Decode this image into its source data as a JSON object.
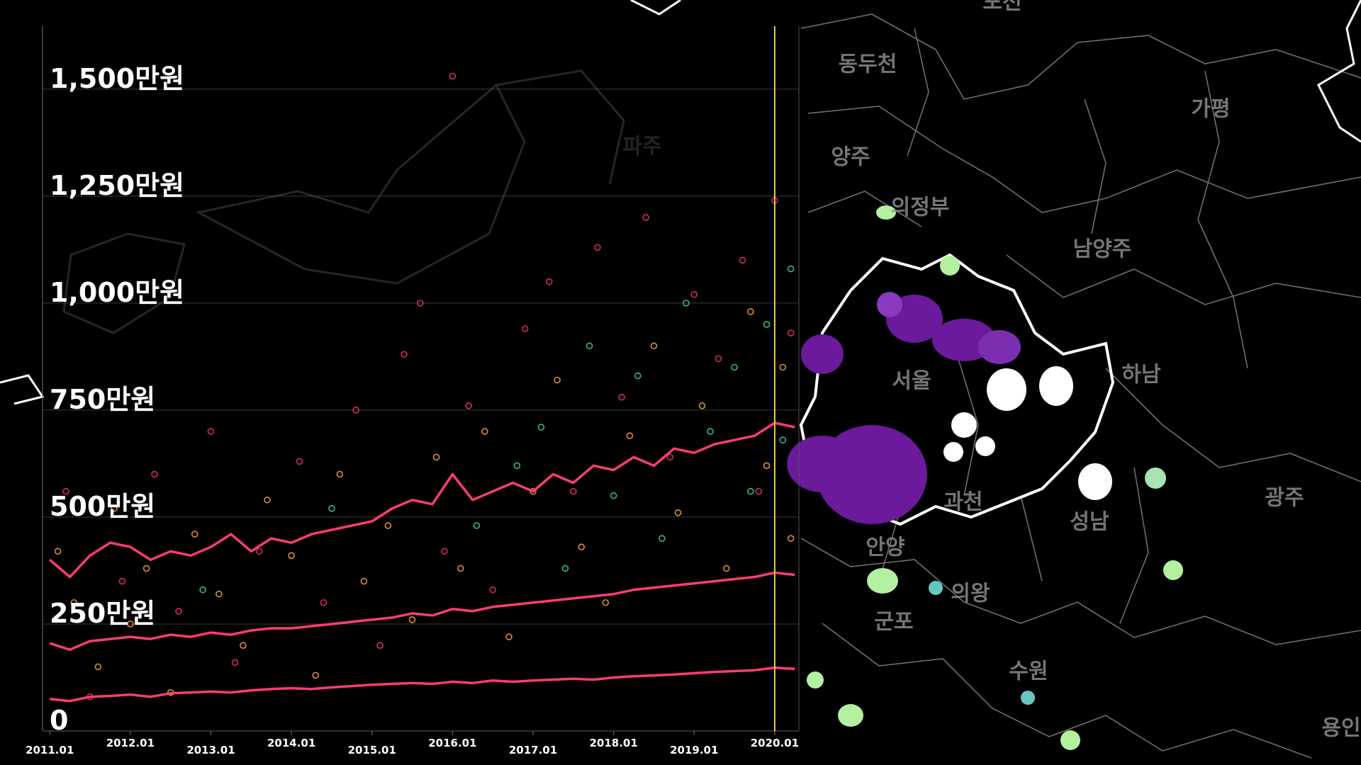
{
  "chart_data": {
    "type": "scatter-line",
    "x": [
      2011.0,
      2011.25,
      2011.5,
      2011.75,
      2012.0,
      2012.25,
      2012.5,
      2012.75,
      2013.0,
      2013.25,
      2013.5,
      2013.75,
      2014.0,
      2014.25,
      2014.5,
      2014.75,
      2015.0,
      2015.25,
      2015.5,
      2015.75,
      2016.0,
      2016.25,
      2016.5,
      2016.75,
      2017.0,
      2017.25,
      2017.5,
      2017.75,
      2018.0,
      2018.25,
      2018.5,
      2018.75,
      2019.0,
      2019.25,
      2019.5,
      2019.75,
      2020.0,
      2020.25
    ],
    "series": [
      {
        "color": "#ff3d6e",
        "values": [
          400,
          360,
          410,
          440,
          430,
          400,
          420,
          410,
          430,
          460,
          420,
          450,
          440,
          460,
          470,
          480,
          490,
          520,
          540,
          530,
          600,
          540,
          560,
          580,
          560,
          600,
          580,
          620,
          610,
          640,
          620,
          660,
          650,
          670,
          680,
          690,
          720,
          710
        ]
      },
      {
        "color": "#ff3d6e",
        "values": [
          205,
          190,
          210,
          215,
          220,
          215,
          225,
          220,
          230,
          225,
          235,
          240,
          240,
          245,
          250,
          255,
          260,
          265,
          275,
          270,
          285,
          280,
          290,
          295,
          300,
          305,
          310,
          315,
          320,
          330,
          335,
          340,
          345,
          350,
          355,
          360,
          370,
          365
        ]
      },
      {
        "color": "#ff3d6e",
        "values": [
          75,
          70,
          80,
          82,
          85,
          80,
          88,
          90,
          92,
          90,
          95,
          98,
          100,
          98,
          102,
          105,
          108,
          110,
          112,
          110,
          115,
          112,
          118,
          115,
          118,
          120,
          122,
          120,
          125,
          128,
          130,
          132,
          135,
          138,
          140,
          142,
          148,
          145
        ]
      }
    ],
    "scatter": [
      {
        "color": "#f2a03a",
        "x": [
          2011.1,
          2011.3,
          2011.6,
          2011.8,
          2012.0,
          2012.2,
          2012.5,
          2012.8,
          2013.1,
          2013.4,
          2013.7,
          2014.0,
          2014.3,
          2014.6,
          2014.9,
          2015.2,
          2015.5,
          2015.8,
          2016.1,
          2016.4,
          2016.7,
          2017.0,
          2017.3,
          2017.6,
          2017.9,
          2018.2,
          2018.5,
          2018.8,
          2019.1,
          2019.4,
          2019.7,
          2019.9,
          2020.1,
          2020.2
        ],
        "y": [
          420,
          300,
          150,
          520,
          250,
          380,
          90,
          460,
          320,
          200,
          540,
          410,
          130,
          600,
          350,
          480,
          260,
          640,
          380,
          700,
          220,
          560,
          820,
          430,
          300,
          690,
          900,
          510,
          760,
          380,
          980,
          620,
          850,
          450
        ]
      },
      {
        "color": "#e8306a",
        "x": [
          2011.2,
          2011.5,
          2011.9,
          2012.3,
          2012.6,
          2013.0,
          2013.3,
          2013.6,
          2014.1,
          2014.4,
          2014.8,
          2015.1,
          2015.4,
          2015.6,
          2015.9,
          2016.2,
          2016.5,
          2016.9,
          2017.2,
          2017.5,
          2017.8,
          2018.1,
          2018.4,
          2018.7,
          2019.0,
          2019.3,
          2019.6,
          2019.8,
          2020.0,
          2020.2,
          2016.0
        ],
        "y": [
          560,
          80,
          350,
          600,
          280,
          700,
          160,
          420,
          630,
          300,
          750,
          200,
          880,
          1000,
          420,
          760,
          330,
          940,
          1050,
          560,
          1130,
          780,
          1200,
          640,
          1020,
          870,
          1100,
          560,
          1240,
          930,
          1530
        ]
      },
      {
        "color": "#35c9b0",
        "x": [
          2016.3,
          2016.8,
          2017.1,
          2017.4,
          2017.7,
          2018.0,
          2018.3,
          2018.6,
          2018.9,
          2019.2,
          2019.5,
          2019.7,
          2019.9,
          2020.1,
          2020.2,
          2014.5,
          2012.9
        ],
        "y": [
          480,
          620,
          710,
          380,
          900,
          550,
          830,
          450,
          1000,
          700,
          850,
          560,
          950,
          680,
          1080,
          520,
          330
        ]
      }
    ],
    "highlight_x": 2020.0,
    "highlight_color": "#e5d23a",
    "xlim": [
      2010.91,
      2020.3
    ],
    "ylim": [
      0,
      1647
    ],
    "xticks": [
      {
        "value": 2011,
        "label": "2011.01"
      },
      {
        "value": 2012,
        "label": "2012.01"
      },
      {
        "value": 2013,
        "label": "2013.01"
      },
      {
        "value": 2014,
        "label": "2014.01"
      },
      {
        "value": 2015,
        "label": "2015.01"
      },
      {
        "value": 2016,
        "label": "2016.01"
      },
      {
        "value": 2017,
        "label": "2017.01"
      },
      {
        "value": 2018,
        "label": "2018.01"
      },
      {
        "value": 2019,
        "label": "2019.01"
      },
      {
        "value": 2020,
        "label": "2020.01"
      }
    ],
    "yticks": [
      0,
      {
        "value": 250,
        "label": "250만원"
      },
      {
        "value": 500,
        "label": "500만원"
      },
      {
        "value": 750,
        "label": "750만원"
      },
      {
        "value": 1000,
        "label": "1,000만원"
      },
      {
        "value": 1250,
        "label": "1,250만원"
      },
      {
        "value": 1500,
        "label": "1,500만원"
      }
    ],
    "grid": true
  },
  "map": {
    "labels": [
      "동두천",
      "양주",
      "의정부",
      "남양주",
      "가평",
      "서울",
      "하남",
      "과천",
      "성남",
      "광주",
      "안양",
      "의왕",
      "군포",
      "수원",
      "용인",
      "파주",
      "포천"
    ]
  }
}
